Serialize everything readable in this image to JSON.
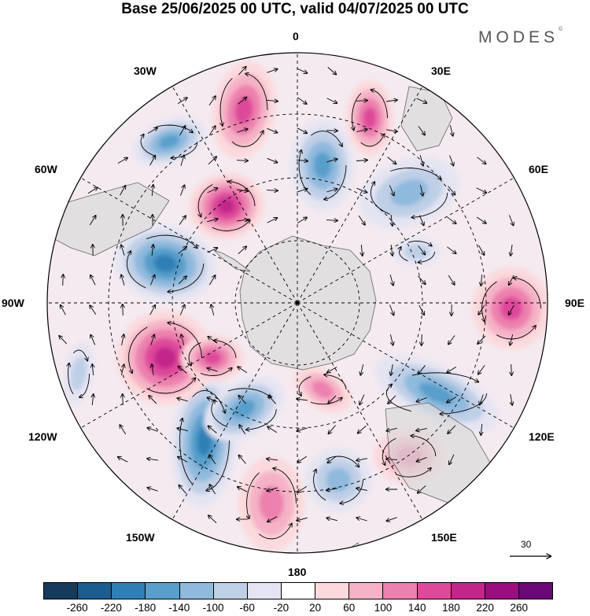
{
  "title": "Base 25/06/2025 00 UTC, valid 04/07/2025 00 UTC",
  "brand": {
    "name": "MODES",
    "mark": "©"
  },
  "longitude_labels": {
    "lon_0": "0",
    "lon_30e": "30E",
    "lon_60e": "60E",
    "lon_90e": "90E",
    "lon_120e": "120E",
    "lon_150e": "150E",
    "lon_180": "180",
    "lon_150w": "150W",
    "lon_120w": "120W",
    "lon_90w": "90W",
    "lon_60w": "60W",
    "lon_30w": "30W"
  },
  "wind_reference": {
    "value": "30"
  },
  "colorbar": {
    "colors": [
      "#163a5c",
      "#1a5d8e",
      "#2f7fb6",
      "#589fcb",
      "#8fb9dd",
      "#bfcfe6",
      "#e4e4f2",
      "#ffffff",
      "#fbd9dc",
      "#f5b2c6",
      "#ec80ae",
      "#dd4a9a",
      "#c2268a",
      "#9a0e80",
      "#6b0776"
    ],
    "ticks": [
      "-260",
      "-220",
      "-180",
      "-140",
      "-100",
      "-60",
      "-20",
      "20",
      "60",
      "100",
      "140",
      "180",
      "220",
      "260"
    ]
  },
  "anomaly_centres": [
    {
      "sign": "negative",
      "level": 3
    },
    {
      "sign": "positive",
      "level": 3
    },
    {
      "sign": "negative",
      "level": 4
    },
    {
      "sign": "positive",
      "level": 4
    },
    {
      "sign": "negative",
      "level": 3
    },
    {
      "sign": "positive",
      "level": 3
    },
    {
      "sign": "negative",
      "level": 2
    },
    {
      "sign": "positive",
      "level": 3
    },
    {
      "sign": "negative",
      "level": 3
    },
    {
      "sign": "positive",
      "level": 2
    },
    {
      "sign": "negative",
      "level": 2
    },
    {
      "sign": "positive",
      "level": 2
    },
    {
      "sign": "positive",
      "level": 2
    },
    {
      "sign": "negative",
      "level": 1
    },
    {
      "sign": "negative",
      "level": 1
    }
  ]
}
